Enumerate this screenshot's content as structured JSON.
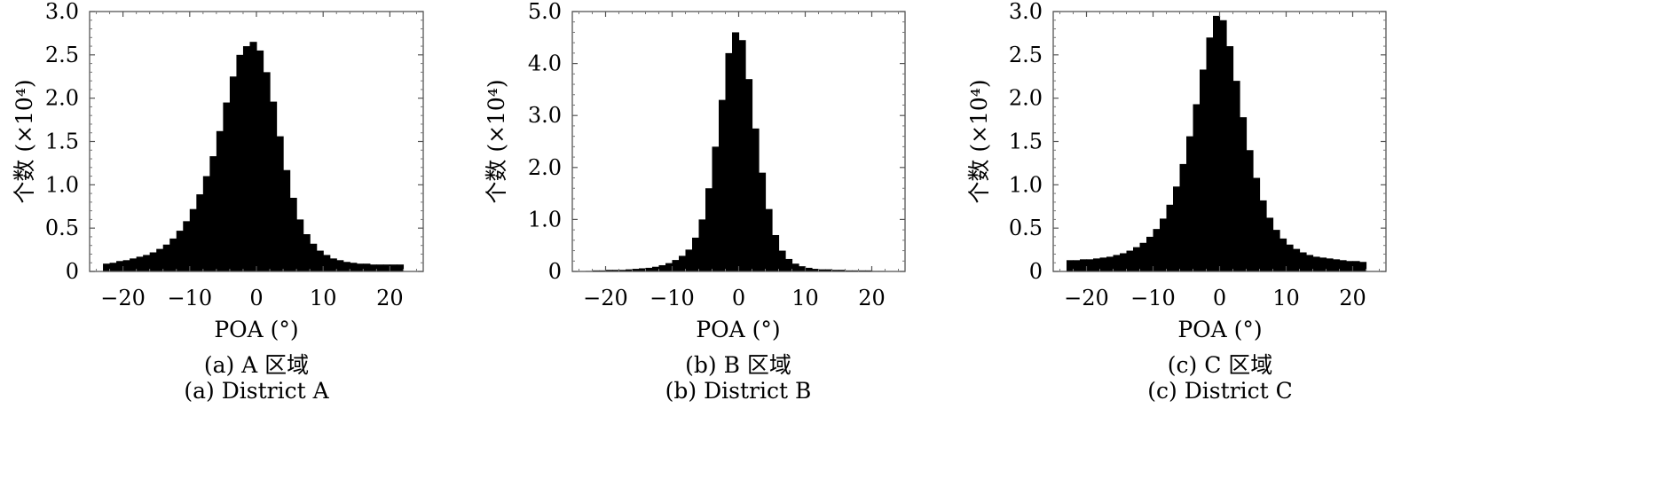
{
  "figure": {
    "panels": [
      {
        "id": "a",
        "caption_cn": "(a) A 区域",
        "caption_en": "(a) District A"
      },
      {
        "id": "b",
        "caption_cn": "(b) B 区域",
        "caption_en": "(b) District B"
      },
      {
        "id": "c",
        "caption_cn": "(c) C 区域",
        "caption_en": "(c) District C"
      }
    ]
  },
  "chart_data": [
    {
      "type": "bar",
      "title": "",
      "xlabel": "POA (°)",
      "ylabel": "个数 (×10⁴)",
      "xlim": [
        -25,
        25
      ],
      "ylim": [
        0,
        3.0
      ],
      "xticks": [
        -20,
        -10,
        0,
        10,
        20
      ],
      "xtick_labels": [
        "−20",
        "−10",
        "0",
        "10",
        "20"
      ],
      "yticks": [
        0,
        0.5,
        1.0,
        1.5,
        2.0,
        2.5,
        3.0
      ],
      "ytick_labels": [
        "0",
        "0.5",
        "1.0",
        "1.5",
        "2.0",
        "2.5",
        "3.0"
      ],
      "grid": false,
      "bin_width": 1,
      "x": [
        -22.5,
        -21.5,
        -20.5,
        -19.5,
        -18.5,
        -17.5,
        -16.5,
        -15.5,
        -14.5,
        -13.5,
        -12.5,
        -11.5,
        -10.5,
        -9.5,
        -8.5,
        -7.5,
        -6.5,
        -5.5,
        -4.5,
        -3.5,
        -2.5,
        -1.5,
        -0.5,
        0.5,
        1.5,
        2.5,
        3.5,
        4.5,
        5.5,
        6.5,
        7.5,
        8.5,
        9.5,
        10.5,
        11.5,
        12.5,
        13.5,
        14.5,
        15.5,
        16.5,
        17.5,
        18.5,
        19.5,
        20.5,
        21.5
      ],
      "values": [
        0.09,
        0.1,
        0.12,
        0.13,
        0.15,
        0.17,
        0.19,
        0.22,
        0.26,
        0.31,
        0.38,
        0.47,
        0.58,
        0.72,
        0.89,
        1.1,
        1.33,
        1.62,
        1.95,
        2.25,
        2.5,
        2.6,
        2.65,
        2.55,
        2.3,
        1.96,
        1.56,
        1.17,
        0.85,
        0.6,
        0.43,
        0.32,
        0.24,
        0.19,
        0.15,
        0.13,
        0.11,
        0.1,
        0.09,
        0.09,
        0.08,
        0.08,
        0.08,
        0.08,
        0.08
      ]
    },
    {
      "type": "bar",
      "title": "",
      "xlabel": "POA (°)",
      "ylabel": "个数 (×10⁴)",
      "xlim": [
        -25,
        25
      ],
      "ylim": [
        0,
        5.0
      ],
      "xticks": [
        -20,
        -10,
        0,
        10,
        20
      ],
      "xtick_labels": [
        "−20",
        "−10",
        "0",
        "10",
        "20"
      ],
      "yticks": [
        0,
        1.0,
        2.0,
        3.0,
        4.0,
        5.0
      ],
      "ytick_labels": [
        "0",
        "1.0",
        "2.0",
        "3.0",
        "4.0",
        "5.0"
      ],
      "grid": false,
      "bin_width": 1,
      "x": [
        -22.5,
        -21.5,
        -20.5,
        -19.5,
        -18.5,
        -17.5,
        -16.5,
        -15.5,
        -14.5,
        -13.5,
        -12.5,
        -11.5,
        -10.5,
        -9.5,
        -8.5,
        -7.5,
        -6.5,
        -5.5,
        -4.5,
        -3.5,
        -2.5,
        -1.5,
        -0.5,
        0.5,
        1.5,
        2.5,
        3.5,
        4.5,
        5.5,
        6.5,
        7.5,
        8.5,
        9.5,
        10.5,
        11.5,
        12.5,
        13.5,
        14.5,
        15.5,
        16.5,
        17.5,
        18.5,
        19.5,
        20.5,
        21.5
      ],
      "values": [
        0.01,
        0.02,
        0.02,
        0.03,
        0.03,
        0.03,
        0.04,
        0.05,
        0.06,
        0.07,
        0.09,
        0.12,
        0.16,
        0.22,
        0.3,
        0.42,
        0.65,
        1.0,
        1.6,
        2.4,
        3.3,
        4.2,
        4.6,
        4.45,
        3.7,
        2.75,
        1.9,
        1.2,
        0.7,
        0.4,
        0.24,
        0.15,
        0.1,
        0.07,
        0.05,
        0.04,
        0.04,
        0.03,
        0.03,
        0.02,
        0.02,
        0.02,
        0.02,
        0.01,
        0.01
      ]
    },
    {
      "type": "bar",
      "title": "",
      "xlabel": "POA (°)",
      "ylabel": "个数 (×10⁴)",
      "xlim": [
        -25,
        25
      ],
      "ylim": [
        0,
        3.0
      ],
      "xticks": [
        -20,
        -10,
        0,
        10,
        20
      ],
      "xtick_labels": [
        "−20",
        "−10",
        "0",
        "10",
        "20"
      ],
      "yticks": [
        0,
        0.5,
        1.0,
        1.5,
        2.0,
        2.5,
        3.0
      ],
      "ytick_labels": [
        "0",
        "0.5",
        "1.0",
        "1.5",
        "2.0",
        "2.5",
        "3.0"
      ],
      "grid": false,
      "bin_width": 1,
      "x": [
        -22.5,
        -21.5,
        -20.5,
        -19.5,
        -18.5,
        -17.5,
        -16.5,
        -15.5,
        -14.5,
        -13.5,
        -12.5,
        -11.5,
        -10.5,
        -9.5,
        -8.5,
        -7.5,
        -6.5,
        -5.5,
        -4.5,
        -3.5,
        -2.5,
        -1.5,
        -0.5,
        0.5,
        1.5,
        2.5,
        3.5,
        4.5,
        5.5,
        6.5,
        7.5,
        8.5,
        9.5,
        10.5,
        11.5,
        12.5,
        13.5,
        14.5,
        15.5,
        16.5,
        17.5,
        18.5,
        19.5,
        20.5,
        21.5
      ],
      "values": [
        0.13,
        0.13,
        0.14,
        0.14,
        0.15,
        0.16,
        0.17,
        0.19,
        0.21,
        0.24,
        0.28,
        0.33,
        0.4,
        0.49,
        0.61,
        0.77,
        0.98,
        1.24,
        1.56,
        1.93,
        2.33,
        2.7,
        2.95,
        2.9,
        2.6,
        2.2,
        1.78,
        1.4,
        1.08,
        0.82,
        0.62,
        0.48,
        0.38,
        0.31,
        0.26,
        0.22,
        0.19,
        0.17,
        0.16,
        0.15,
        0.14,
        0.13,
        0.12,
        0.12,
        0.11
      ]
    }
  ]
}
